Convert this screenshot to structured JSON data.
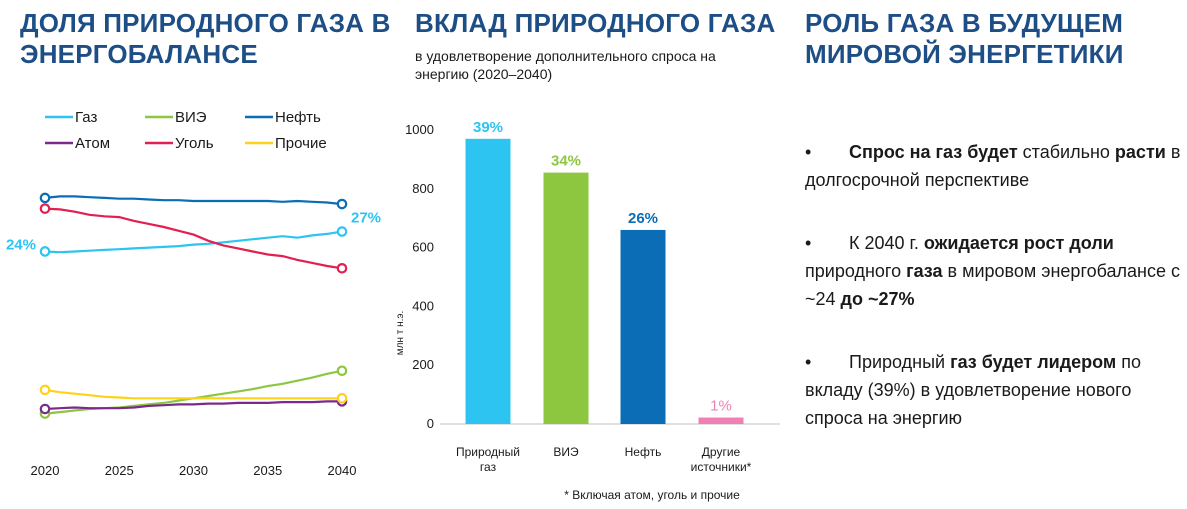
{
  "columns": {
    "left_title": "ДОЛЯ ПРИРОДНОГО ГАЗА В ЭНЕРГОБАЛАНСЕ",
    "middle_title": "ВКЛАД ПРИРОДНОГО ГАЗА",
    "middle_subtitle": "в удовлетворение дополнительного спроса на энергию (2020–2040)",
    "right_title": "РОЛЬ ГАЗА В БУДУЩЕМ МИРОВОЙ ЭНЕРГЕТИКИ"
  },
  "bullets": [
    {
      "segments": [
        {
          "text": "Спрос на газ будет",
          "bold": true
        },
        {
          "text": " стабильно ",
          "bold": false
        },
        {
          "text": "расти",
          "bold": true
        },
        {
          "text": " в долгосрочной перспективе",
          "bold": false
        }
      ]
    },
    {
      "segments": [
        {
          "text": "К 2040 г. ",
          "bold": false
        },
        {
          "text": "ожидается рост доли",
          "bold": true
        },
        {
          "text": " природного ",
          "bold": false
        },
        {
          "text": "газа",
          "bold": true
        },
        {
          "text": " в мировом энергобалансе с ~24 ",
          "bold": false
        },
        {
          "text": "до ~27%",
          "bold": true
        }
      ]
    },
    {
      "segments": [
        {
          "text": "Природный ",
          "bold": false
        },
        {
          "text": "газ будет лидером",
          "bold": true
        },
        {
          "text": " по вкладу (39%) в удовлетворение нового спроса на энергию",
          "bold": false
        }
      ]
    }
  ],
  "colors": {
    "title": "#1d4e86",
    "gas": "#2ec4f1",
    "renewables": "#8dc63f",
    "oil": "#0a6db5",
    "nuclear": "#7b2a8c",
    "coal": "#e2204f",
    "other": "#ffd21a",
    "other_sources_bar": "#f07fb5"
  },
  "chart_data": [
    {
      "type": "line",
      "x": [
        2020,
        2021,
        2022,
        2023,
        2024,
        2025,
        2026,
        2027,
        2028,
        2029,
        2030,
        2031,
        2032,
        2033,
        2034,
        2035,
        2036,
        2037,
        2038,
        2039,
        2040
      ],
      "xticks": [
        2020,
        2025,
        2030,
        2035,
        2040
      ],
      "legend": {
        "placement": "top",
        "entries": [
          "Газ",
          "ВИЭ",
          "Нефть",
          "Атом",
          "Уголь",
          "Прочие"
        ]
      },
      "series": [
        {
          "name": "Газ",
          "color": "#2ec4f1",
          "values": [
            24.0,
            23.9,
            24.0,
            24.1,
            24.2,
            24.3,
            24.4,
            24.5,
            24.6,
            24.7,
            24.9,
            25.0,
            25.2,
            25.4,
            25.6,
            25.8,
            26.0,
            25.8,
            26.1,
            26.3,
            26.6
          ]
        },
        {
          "name": "Нефть",
          "color": "#0a6db5",
          "values": [
            31.0,
            31.2,
            31.2,
            31.1,
            31.0,
            30.9,
            30.9,
            30.8,
            30.7,
            30.7,
            30.6,
            30.6,
            30.6,
            30.6,
            30.6,
            30.6,
            30.5,
            30.6,
            30.5,
            30.4,
            30.2
          ]
        },
        {
          "name": "Уголь",
          "color": "#e2204f",
          "values": [
            29.6,
            29.5,
            29.2,
            28.8,
            28.6,
            28.5,
            28.0,
            27.6,
            27.2,
            26.7,
            26.2,
            25.4,
            24.8,
            24.4,
            24.0,
            23.6,
            23.4,
            22.9,
            22.5,
            22.1,
            21.8
          ]
        },
        {
          "name": "ВИЭ",
          "color": "#8dc63f",
          "values": [
            2.8,
            3.0,
            3.2,
            3.4,
            3.5,
            3.6,
            3.8,
            4.0,
            4.2,
            4.5,
            4.8,
            5.1,
            5.4,
            5.7,
            6.0,
            6.4,
            6.7,
            7.1,
            7.5,
            8.0,
            8.4
          ]
        },
        {
          "name": "Атом",
          "color": "#7b2a8c",
          "values": [
            3.4,
            3.5,
            3.6,
            3.5,
            3.5,
            3.5,
            3.6,
            3.8,
            3.9,
            4.0,
            4.0,
            4.1,
            4.1,
            4.2,
            4.2,
            4.2,
            4.3,
            4.3,
            4.3,
            4.4,
            4.4
          ]
        },
        {
          "name": "Прочие",
          "color": "#ffd21a",
          "values": [
            5.9,
            5.6,
            5.4,
            5.2,
            5.0,
            4.9,
            4.8,
            4.8,
            4.8,
            4.8,
            4.8,
            4.8,
            4.8,
            4.8,
            4.8,
            4.8,
            4.8,
            4.8,
            4.8,
            4.8,
            4.8
          ]
        }
      ],
      "annotations": [
        {
          "series": "Газ",
          "at": 2020,
          "text": "24%"
        },
        {
          "series": "Газ",
          "at": 2040,
          "text": "27%"
        }
      ],
      "ylim": [
        0,
        34
      ]
    },
    {
      "type": "bar",
      "categories": [
        "Природный газ",
        "ВИЭ",
        "Нефть",
        "Другие источники*"
      ],
      "values": [
        970,
        855,
        660,
        22
      ],
      "data_labels": [
        "39%",
        "34%",
        "26%",
        "1%"
      ],
      "colors": [
        "#2ec4f1",
        "#8dc63f",
        "#0a6db5",
        "#f07fb5"
      ],
      "ylabel": "млн т н.э.",
      "yticks": [
        0,
        200,
        400,
        600,
        800,
        1000
      ],
      "ylim": [
        0,
        1000
      ],
      "footnote": "* Включая атом, уголь и прочие"
    }
  ]
}
